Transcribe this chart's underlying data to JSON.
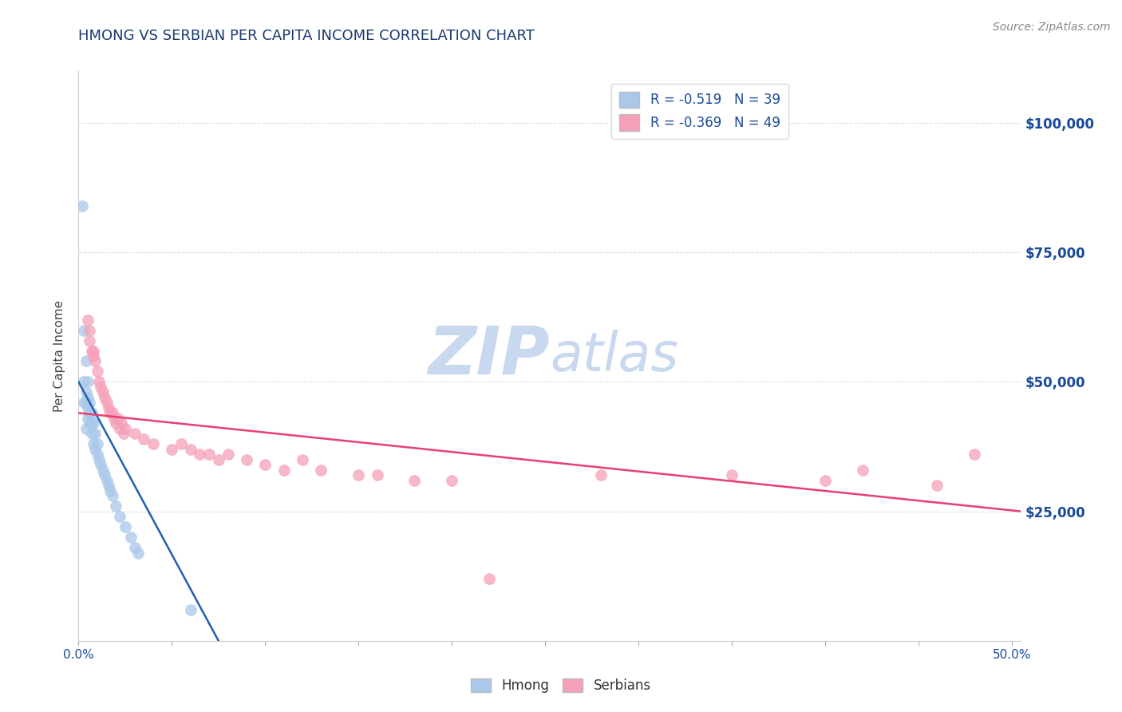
{
  "title": "HMONG VS SERBIAN PER CAPITA INCOME CORRELATION CHART",
  "source_text": "Source: ZipAtlas.com",
  "ylabel": "Per Capita Income",
  "xlim": [
    0.0,
    0.505
  ],
  "ylim": [
    0,
    110000
  ],
  "yticks": [
    25000,
    50000,
    75000,
    100000
  ],
  "xticks": [
    0.0,
    0.05,
    0.1,
    0.15,
    0.2,
    0.25,
    0.3,
    0.35,
    0.4,
    0.45,
    0.5
  ],
  "xtick_labels_major": [
    "0.0%",
    "",
    "",
    "",
    "",
    "",
    "",
    "",
    "",
    "",
    "50.0%"
  ],
  "ytick_labels": [
    "$25,000",
    "$50,000",
    "$75,000",
    "$100,000"
  ],
  "hmong_R": -0.519,
  "hmong_N": 39,
  "serbian_R": -0.369,
  "serbian_N": 49,
  "hmong_color": "#aac8ea",
  "serbian_color": "#f5a0b8",
  "hmong_line_color": "#2060b0",
  "serbian_line_color": "#e84070",
  "background_color": "#ffffff",
  "grid_color": "#d8d8d8",
  "title_color": "#1a3a6e",
  "ylabel_color": "#444444",
  "tick_label_color": "#1a4a9a",
  "watermark_color": "#c8d8ee",
  "hmong_scatter_x": [
    0.002,
    0.003,
    0.003,
    0.004,
    0.004,
    0.004,
    0.005,
    0.005,
    0.005,
    0.005,
    0.006,
    0.006,
    0.006,
    0.007,
    0.007,
    0.007,
    0.008,
    0.008,
    0.009,
    0.009,
    0.01,
    0.01,
    0.011,
    0.012,
    0.013,
    0.014,
    0.015,
    0.016,
    0.017,
    0.018,
    0.02,
    0.022,
    0.025,
    0.028,
    0.03,
    0.032,
    0.003,
    0.004,
    0.06
  ],
  "hmong_scatter_y": [
    84000,
    60000,
    50000,
    54000,
    48000,
    46000,
    50000,
    47000,
    45000,
    43000,
    46000,
    44000,
    42000,
    44000,
    42000,
    40000,
    42000,
    38000,
    40000,
    37000,
    38000,
    36000,
    35000,
    34000,
    33000,
    32000,
    31000,
    30000,
    29000,
    28000,
    26000,
    24000,
    22000,
    20000,
    18000,
    17000,
    46000,
    41000,
    6000
  ],
  "serbian_scatter_x": [
    0.005,
    0.006,
    0.007,
    0.008,
    0.009,
    0.01,
    0.011,
    0.012,
    0.013,
    0.014,
    0.015,
    0.016,
    0.017,
    0.018,
    0.019,
    0.02,
    0.021,
    0.022,
    0.023,
    0.024,
    0.025,
    0.03,
    0.035,
    0.04,
    0.05,
    0.055,
    0.06,
    0.065,
    0.07,
    0.075,
    0.08,
    0.09,
    0.1,
    0.11,
    0.12,
    0.13,
    0.15,
    0.16,
    0.18,
    0.2,
    0.006,
    0.008,
    0.22,
    0.28,
    0.35,
    0.4,
    0.42,
    0.46,
    0.48
  ],
  "serbian_scatter_y": [
    62000,
    58000,
    56000,
    55000,
    54000,
    52000,
    50000,
    49000,
    48000,
    47000,
    46000,
    45000,
    44000,
    44000,
    43000,
    42000,
    43000,
    41000,
    42000,
    40000,
    41000,
    40000,
    39000,
    38000,
    37000,
    38000,
    37000,
    36000,
    36000,
    35000,
    36000,
    35000,
    34000,
    33000,
    35000,
    33000,
    32000,
    32000,
    31000,
    31000,
    60000,
    56000,
    12000,
    32000,
    32000,
    31000,
    33000,
    30000,
    36000
  ],
  "hmong_line_x": [
    0.0,
    0.075
  ],
  "hmong_line_y": [
    50000,
    0
  ],
  "serbian_line_x": [
    0.0,
    0.505
  ],
  "serbian_line_y": [
    44000,
    25000
  ]
}
